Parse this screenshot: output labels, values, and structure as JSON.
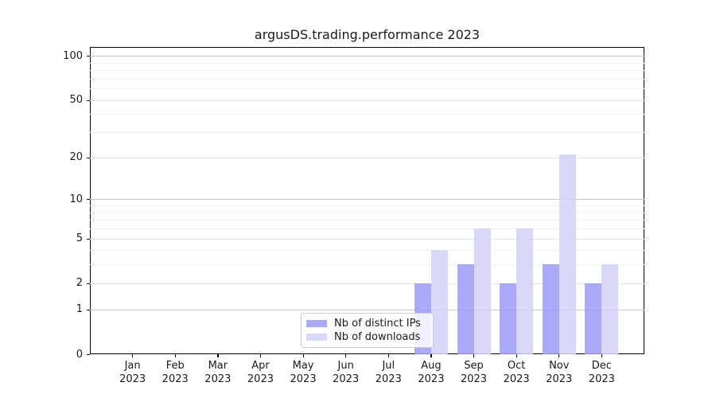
{
  "chart_data": {
    "type": "bar",
    "title": "argusDS.trading.performance 2023",
    "categories": [
      "Jan",
      "Feb",
      "Mar",
      "Apr",
      "May",
      "Jun",
      "Jul",
      "Aug",
      "Sep",
      "Oct",
      "Nov",
      "Dec"
    ],
    "x_year": "2023",
    "series": [
      {
        "name": "Nb of distinct IPs",
        "color": "#9b9bf7",
        "values": [
          0,
          0,
          0,
          0,
          0,
          0,
          0,
          2,
          3,
          2,
          3,
          2
        ]
      },
      {
        "name": "Nb of downloads",
        "color": "#d2d2f6",
        "values": [
          0,
          0,
          0,
          0,
          0,
          0,
          0,
          4,
          6,
          6,
          21,
          3
        ]
      }
    ],
    "bar_alpha": 0.85,
    "yscale": "log1p",
    "ylim": [
      0,
      115
    ],
    "yticks": [
      0,
      1,
      2,
      5,
      10,
      20,
      50,
      100
    ],
    "decade_gridlines": [
      1,
      10,
      100
    ],
    "mid_gridlines": [
      2,
      5,
      20,
      50
    ],
    "minor_gridlines": [
      3,
      4,
      6,
      7,
      8,
      9,
      30,
      40,
      60,
      70,
      80,
      90
    ],
    "legend": {
      "position": "lower center"
    },
    "grid": true
  },
  "colors": {
    "background": "#ffffff",
    "decade_gridline": "#c8c8c8",
    "mid_gridline": "#e4e4e4",
    "minor_gridline": "#f1f1f1",
    "axis": "#000000",
    "text": "#1a1a1a",
    "legend_border": "#cccccc"
  }
}
